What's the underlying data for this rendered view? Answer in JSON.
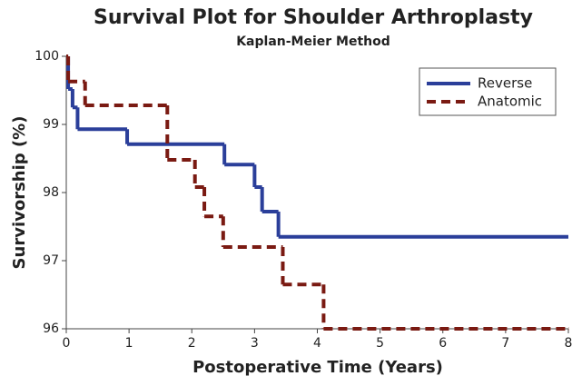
{
  "chart_data": {
    "type": "step",
    "title": "Survival Plot for Shoulder Arthroplasty",
    "subtitle": "Kaplan-Meier Method",
    "x_label": "Postoperative Time (Years)",
    "y_label": "Survivorship (%)",
    "xlim": [
      0,
      8
    ],
    "xticks": [
      0,
      1,
      2,
      3,
      4,
      5,
      6,
      7,
      8
    ],
    "ylim": [
      96,
      100
    ],
    "yticks": [
      96,
      97,
      98,
      99,
      100
    ],
    "legend": "upper right",
    "series": [
      {
        "name": "Reverse",
        "color": "#2b3f9a",
        "dash": false,
        "x": [
          0,
          0.03,
          0.1,
          0.18,
          0.97,
          2.52,
          3.0,
          3.12,
          3.38,
          8
        ],
        "values": [
          100,
          99.52,
          99.25,
          98.93,
          98.71,
          98.41,
          98.08,
          97.72,
          97.35,
          97.35
        ]
      },
      {
        "name": "Anatomic",
        "color": "#7a1a12",
        "dash": true,
        "x": [
          0,
          0.03,
          0.3,
          1.61,
          2.05,
          2.2,
          2.5,
          3.45,
          4.1,
          8
        ],
        "values": [
          100,
          99.63,
          99.28,
          98.48,
          98.08,
          97.65,
          97.2,
          96.65,
          96.0,
          96.0
        ]
      }
    ]
  }
}
